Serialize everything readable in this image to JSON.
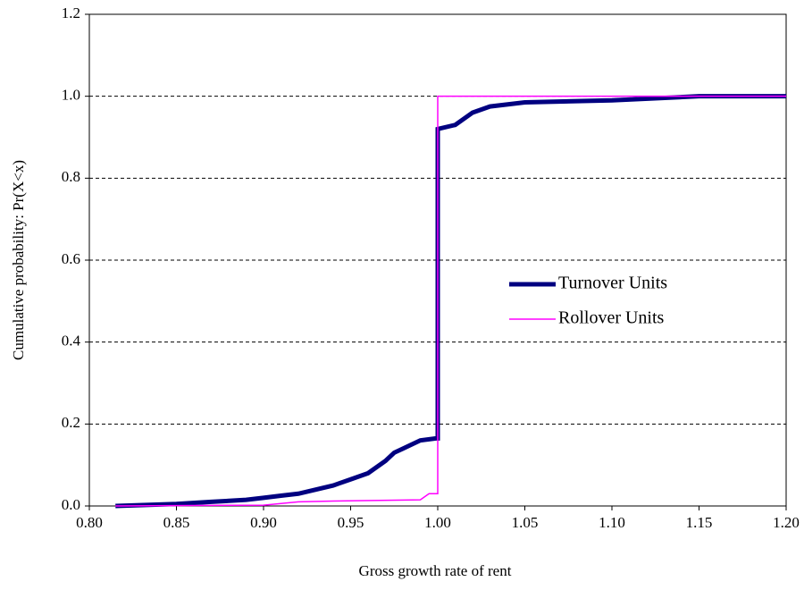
{
  "chart_data": {
    "type": "line",
    "x_label": "Gross growth rate of rent",
    "y_label": "Cumulative probability: Pr(X<x)",
    "xlim": [
      0.8,
      1.2
    ],
    "xticks": [
      {
        "value": 0.8,
        "label": "0.80"
      },
      0.85,
      {
        "value": 0.9,
        "label": "0.90"
      },
      0.95,
      {
        "value": 1.0,
        "label": "1.00"
      },
      1.05,
      {
        "value": 1.1,
        "label": "1.10"
      },
      1.15,
      {
        "value": 1.2,
        "label": "1.20"
      }
    ],
    "ylim": [
      0,
      1.2
    ],
    "yticks": [
      {
        "value": 0,
        "label": "0.0"
      },
      0.2,
      0.4,
      0.6,
      0.8,
      {
        "value": 1.0,
        "label": "1.0"
      },
      1.2
    ],
    "grid": true,
    "legend": "right",
    "series": [
      {
        "name": "Turnover Units",
        "color": "#000080",
        "width": 5,
        "x": [
          0.815,
          0.85,
          0.87,
          0.89,
          0.9,
          0.91,
          0.92,
          0.93,
          0.94,
          0.95,
          0.96,
          0.97,
          0.975,
          0.98,
          0.99,
          0.999,
          1.0,
          1.0,
          1.01,
          1.02,
          1.03,
          1.05,
          1.1,
          1.15,
          1.2
        ],
        "values": [
          0,
          0.005,
          0.01,
          0.015,
          0.02,
          0.025,
          0.03,
          0.04,
          0.05,
          0.065,
          0.08,
          0.11,
          0.13,
          0.14,
          0.16,
          0.165,
          0.165,
          0.92,
          0.93,
          0.96,
          0.975,
          0.985,
          0.99,
          1.0,
          1.0
        ]
      },
      {
        "name": "Rollover Units",
        "color": "#ff00ff",
        "width": 1.5,
        "x": [
          0.815,
          0.9,
          0.92,
          0.94,
          0.99,
          0.995,
          1.0,
          1.0,
          1.2
        ],
        "values": [
          0,
          0.002,
          0.01,
          0.012,
          0.015,
          0.03,
          0.03,
          1.0,
          1.0
        ]
      }
    ]
  }
}
